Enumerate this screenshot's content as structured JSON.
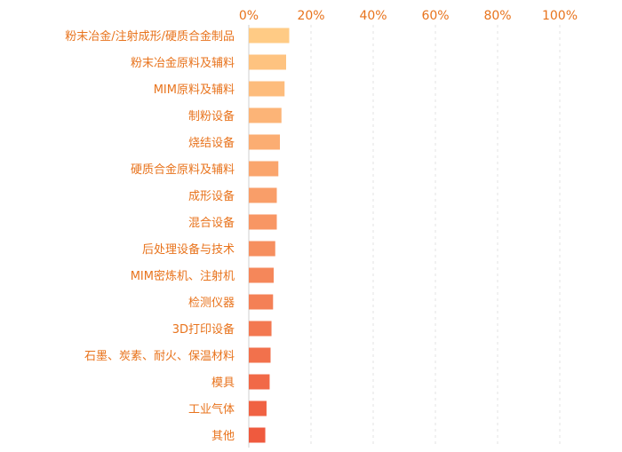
{
  "chart_data": {
    "type": "bar",
    "orientation": "horizontal",
    "categories": [
      "粉末冶金/注射成形/硬质合金制品",
      "粉末冶金原料及辅料",
      "MIM原料及辅料",
      "制粉设备",
      "烧结设备",
      "硬质合金原料及辅料",
      "成形设备",
      "混合设备",
      "后处理设备与技术",
      "MIM密炼机、注射机",
      "检测仪器",
      "3D打印设备",
      "石墨、炭素、耐火、保温材料",
      "模具",
      "工业气体",
      "其他"
    ],
    "values": [
      13,
      12,
      11.5,
      10.5,
      10,
      9.5,
      9,
      9,
      8.5,
      8,
      7.8,
      7.3,
      7,
      6.7,
      5.7,
      5.3
    ],
    "xlim": [
      0,
      100
    ],
    "x_ticks": [
      0,
      20,
      40,
      60,
      80,
      100
    ],
    "x_tick_labels": [
      "0%",
      "20%",
      "40%",
      "60%",
      "80%",
      "100%"
    ],
    "x_axis_position": "top",
    "grid": true,
    "title": "",
    "xlabel": "",
    "ylabel": "",
    "colors": {
      "label": "#e8731c",
      "bar_start": "#ffcb85",
      "bar_end": "#ef5a3e"
    }
  }
}
